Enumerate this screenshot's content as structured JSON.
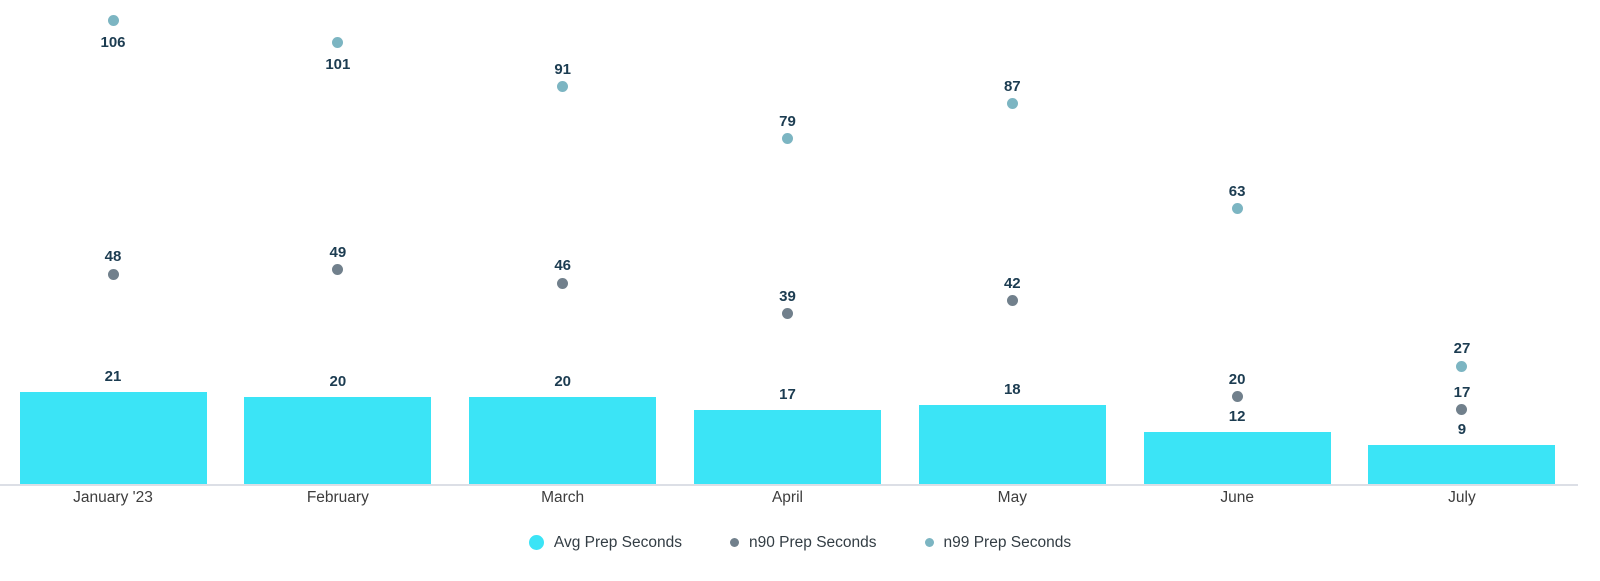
{
  "chart_data": {
    "type": "bar",
    "subtype": "combo-bar-scatter",
    "categories": [
      "January '23",
      "February",
      "March",
      "April",
      "May",
      "June",
      "July"
    ],
    "series": [
      {
        "name": "Avg Prep Seconds",
        "render": "bar",
        "color": "#3be4f6",
        "values": [
          21,
          20,
          20,
          17,
          18,
          12,
          9
        ]
      },
      {
        "name": "n90 Prep Seconds",
        "render": "scatter",
        "color": "#71808c",
        "values": [
          48,
          49,
          46,
          39,
          42,
          20,
          17
        ]
      },
      {
        "name": "n99 Prep Seconds",
        "render": "scatter",
        "color": "#7cb5c2",
        "values": [
          106,
          101,
          91,
          79,
          87,
          63,
          27
        ]
      }
    ],
    "title": "",
    "xlabel": "",
    "ylabel": "",
    "ylim": [
      0,
      110
    ],
    "grid": false,
    "value_labels": true,
    "legend_position": "bottom",
    "colors": {
      "value_label_text": "#1c3c51",
      "axis_line": "#dcdfe6",
      "month_label_text": "#3d3d3d",
      "legend_text": "#333d44",
      "background": "#ffffff"
    }
  }
}
